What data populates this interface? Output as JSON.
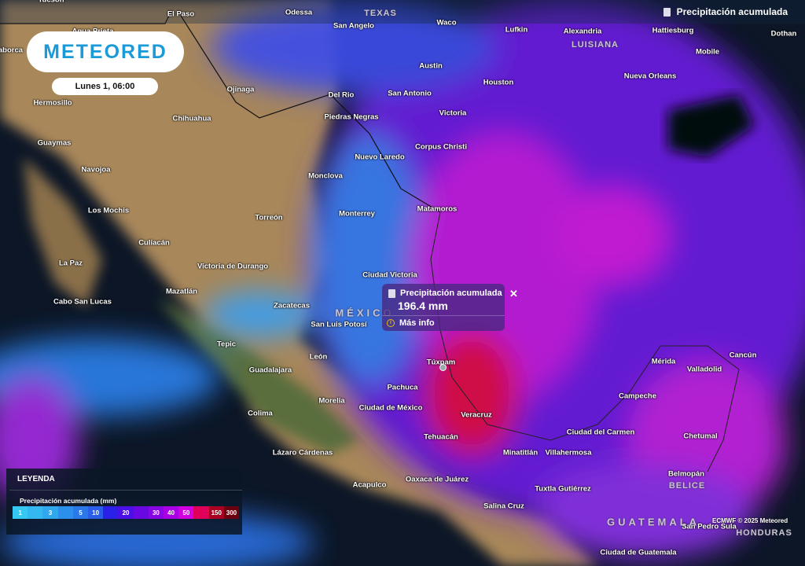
{
  "branding": {
    "logo": "METEORED",
    "date_label": "Lunes 1, 06:00"
  },
  "layer": {
    "icon": "rain-gauge-icon",
    "label": "Precipitación acumulada"
  },
  "popup": {
    "title": "Precipitación acumulada",
    "value": "196.4 mm",
    "more_info": "Más info",
    "close": "✕"
  },
  "legend": {
    "title": "LEYENDA",
    "subtitle": "Precipitación acumulada (mm)",
    "scale": [
      {
        "label": "1",
        "color": "#35c8f2"
      },
      {
        "label": "",
        "color": "#33b8f0"
      },
      {
        "label": "3",
        "color": "#2fa8ee"
      },
      {
        "label": "",
        "color": "#2c8fec"
      },
      {
        "label": "5",
        "color": "#2a78ea"
      },
      {
        "label": "10",
        "color": "#2a5de8"
      },
      {
        "label": "",
        "color": "#2a20e8"
      },
      {
        "label": "20",
        "color": "#4a10e6"
      },
      {
        "label": "",
        "color": "#6a08e4"
      },
      {
        "label": "30",
        "color": "#8a05e4"
      },
      {
        "label": "40",
        "color": "#aa00e6"
      },
      {
        "label": "50",
        "color": "#d000e0"
      },
      {
        "label": "",
        "color": "#e0005a"
      },
      {
        "label": "150",
        "color": "#a80020"
      },
      {
        "label": "300",
        "color": "#6a0010"
      }
    ]
  },
  "attribution": "ECMWF © 2025 Meteored",
  "map": {
    "countries": [
      "TEXAS",
      "LUISIANA",
      "MÉXICO",
      "BELICE",
      "GUATEMALA",
      "HONDURAS"
    ],
    "cities": [
      "Tucson",
      "El Paso",
      "Odessa",
      "Waco",
      "San Angelo",
      "Lufkin",
      "Alexandria",
      "Hattiesburg",
      "Dothan",
      "Mobile",
      "Agua Prieta",
      "Caborca",
      "Austin",
      "Houston",
      "Nueva Orleans",
      "Ojinaga",
      "Del Rio",
      "San Antonio",
      "Hermosillo",
      "Chihuahua",
      "Victoria",
      "Piedras Negras",
      "Corpus Christi",
      "Guaymas",
      "Nuevo Laredo",
      "Navojoa",
      "Monclova",
      "Los Mochis",
      "Monterrey",
      "Matamoros",
      "Torreón",
      "Culiacán",
      "La Paz",
      "Victoria de Durango",
      "Ciudad Victoria",
      "Mazatlán",
      "Cabo San Lucas",
      "Zacatecas",
      "San Luis Potosí",
      "Tepic",
      "León",
      "Túxpam",
      "Mérida",
      "Valladolid",
      "Cancún",
      "Guadalajara",
      "Pachuca",
      "Campeche",
      "Colima",
      "Morelia",
      "Ciudad de México",
      "Veracruz",
      "Tehuacán",
      "Ciudad del Carmen",
      "Chetumal",
      "Lázaro Cárdenas",
      "Minatitlán",
      "Villahermosa",
      "Belmopán",
      "Oaxaca de Juárez",
      "Acapulco",
      "Tuxtla Gutiérrez",
      "Salina Cruz",
      "San Pedro Sula",
      "Ciudad de Guatemala"
    ]
  }
}
